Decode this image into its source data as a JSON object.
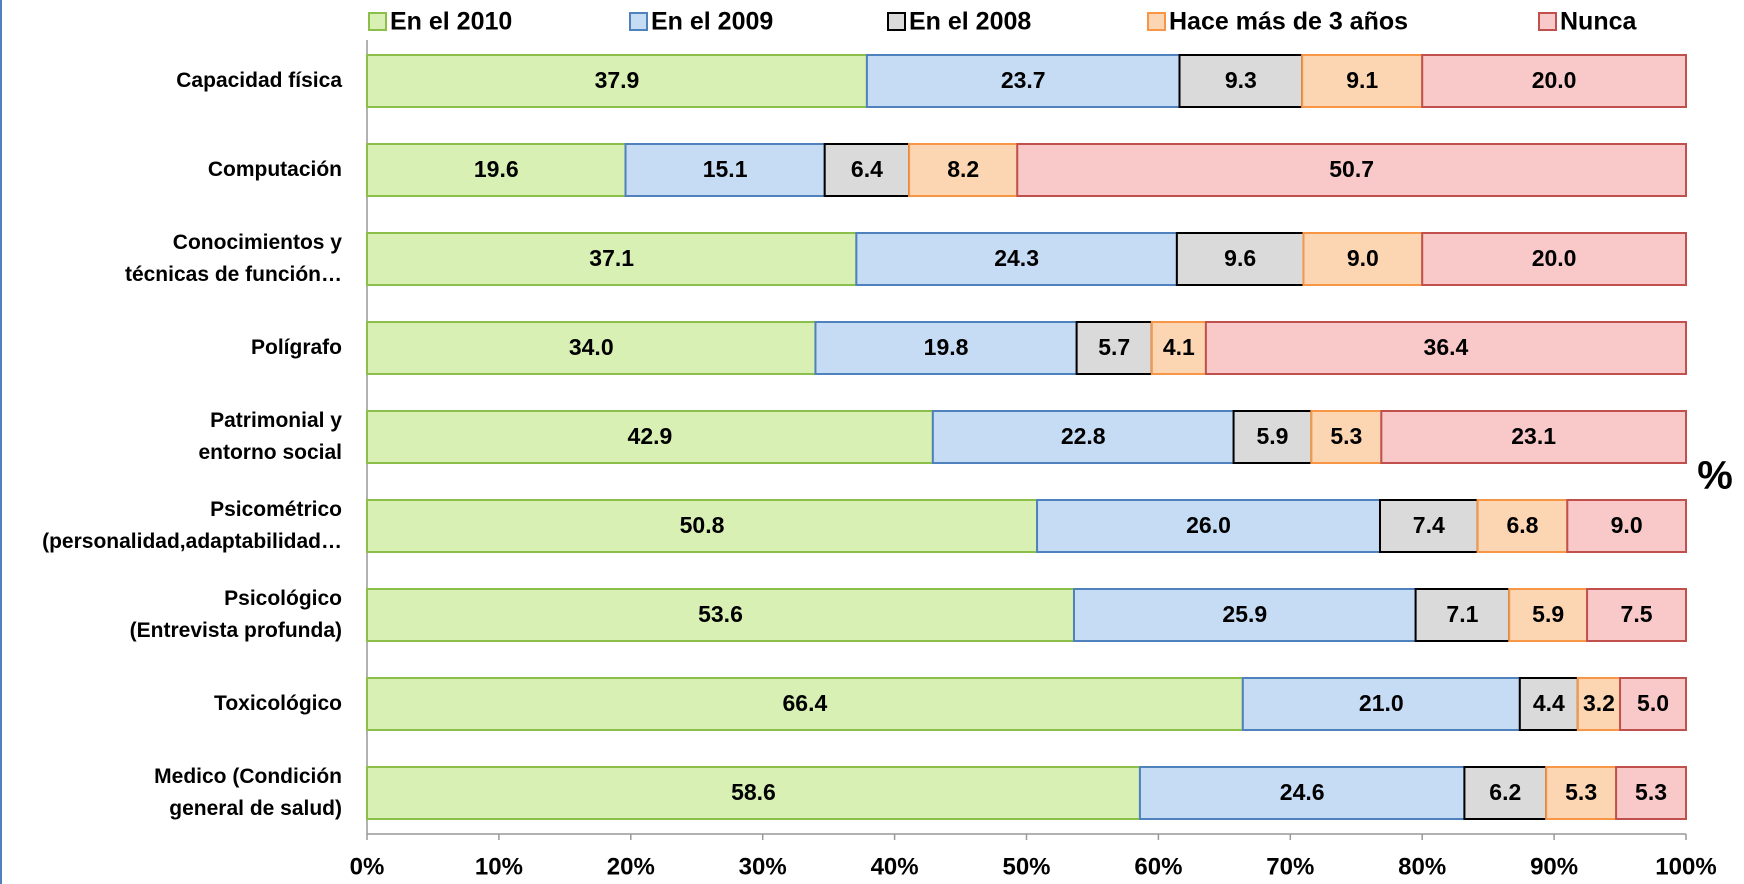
{
  "chart_data": {
    "type": "stacked_bar_horizontal",
    "x_axis_label": "%",
    "categories": [
      "Capacidad física",
      "Computación",
      "Conocimientos y\ntécnicas de función…",
      "Polígrafo",
      "Patrimonial y\nentorno social",
      "Psicométrico\n(personalidad,adaptabilidad…",
      "Psicológico\n(Entrevista profunda)",
      "Toxicológico",
      "Medico (Condición\ngeneral de salud)"
    ],
    "series": [
      {
        "name": "En el 2010",
        "color": "#d8f0b4",
        "border": "#8cbf4a",
        "values": [
          37.9,
          19.6,
          37.1,
          34.0,
          42.9,
          50.8,
          53.6,
          66.4,
          58.6
        ],
        "value_labels": [
          "37.9",
          "19.6",
          "37.1",
          "34.0",
          "42.9",
          "50.8",
          "53.6",
          "66.4",
          "58.6"
        ]
      },
      {
        "name": "En el 2009",
        "color": "#c6dcf5",
        "border": "#4f81bd",
        "values": [
          23.7,
          15.1,
          24.3,
          19.8,
          22.8,
          26.0,
          25.9,
          21.0,
          24.6
        ],
        "value_labels": [
          "23.7",
          "15.1",
          "24.3",
          "19.8",
          "22.8",
          "26.0",
          "25.9",
          "21.0",
          "24.6"
        ]
      },
      {
        "name": "En el 2008",
        "color": "#dadada",
        "border": "#000000",
        "values": [
          9.3,
          6.4,
          9.6,
          5.7,
          5.9,
          7.4,
          7.1,
          4.4,
          6.2
        ],
        "value_labels": [
          "9.3",
          "6.4",
          "9.6",
          "5.7",
          "5.9",
          "7.4",
          "7.1",
          "4.4",
          "6.2"
        ]
      },
      {
        "name": "Hace más de 3 años",
        "color": "#fcd6b2",
        "border": "#f79646",
        "values": [
          9.1,
          8.2,
          9.0,
          4.1,
          5.3,
          6.8,
          5.9,
          3.2,
          5.3
        ],
        "value_labels": [
          "9.1",
          "8.2",
          "9.0",
          "4.1",
          "5.3",
          "6.8",
          "5.9",
          "3.2",
          "5.3"
        ]
      },
      {
        "name": "Nunca",
        "color": "#f9c8c8",
        "border": "#c0504d",
        "values": [
          20.0,
          50.7,
          20.0,
          36.4,
          23.1,
          9.0,
          7.5,
          5.0,
          5.3
        ],
        "value_labels": [
          "20.0",
          "50.7",
          "20.0",
          "36.4",
          "23.1",
          "9.0",
          "7.5",
          "5.0",
          "5.3"
        ]
      }
    ],
    "xlim": [
      0,
      100
    ],
    "xticks": [
      {
        "value": 0,
        "label": "0%"
      },
      {
        "value": 10,
        "label": "10%"
      },
      {
        "value": 20,
        "label": "20%"
      },
      {
        "value": 30,
        "label": "30%"
      },
      {
        "value": 40,
        "label": "40%"
      },
      {
        "value": 50,
        "label": "50%"
      },
      {
        "value": 60,
        "label": "60%"
      },
      {
        "value": 70,
        "label": "70%"
      },
      {
        "value": 80,
        "label": "80%"
      },
      {
        "value": 90,
        "label": "90%"
      },
      {
        "value": 100,
        "label": "100%"
      }
    ],
    "legend": "top"
  }
}
